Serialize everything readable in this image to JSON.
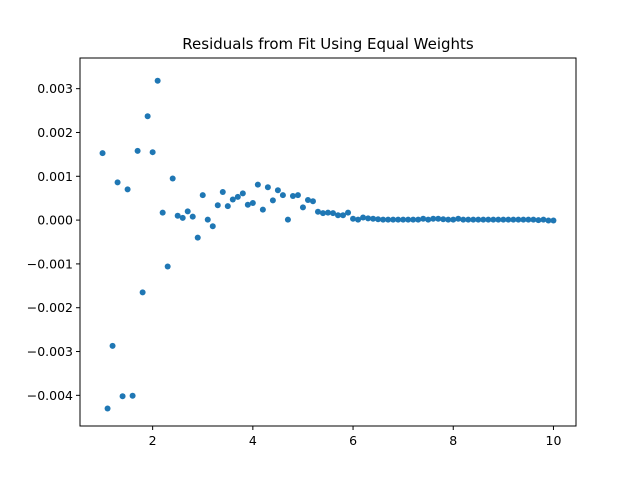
{
  "chart_data": {
    "type": "scatter",
    "title": "Residuals from Fit Using Equal Weights",
    "xlabel": "",
    "ylabel": "",
    "xlim": [
      0.55,
      10.45
    ],
    "ylim": [
      -0.0047,
      0.0037
    ],
    "x_ticks": [
      2,
      4,
      6,
      8,
      10
    ],
    "x_tick_labels": [
      "2",
      "4",
      "6",
      "8",
      "10"
    ],
    "y_ticks": [
      -0.004,
      -0.003,
      -0.002,
      -0.001,
      0.0,
      0.001,
      0.002,
      0.003
    ],
    "y_tick_labels": [
      "−0.004",
      "−0.003",
      "−0.002",
      "−0.001",
      "0.000",
      "0.001",
      "0.002",
      "0.003"
    ],
    "grid": false,
    "colors": {
      "marker": "#1f77b4",
      "axes": "#000000",
      "background": "#ffffff"
    },
    "series": [
      {
        "x": [
          1.0,
          1.1,
          1.2,
          1.3,
          1.4,
          1.5,
          1.6,
          1.7,
          1.8,
          1.9,
          2.0,
          2.1,
          2.2,
          2.3,
          2.4,
          2.5,
          2.6,
          2.7,
          2.8,
          2.9,
          3.0,
          3.1,
          3.2,
          3.3,
          3.4,
          3.5,
          3.6,
          3.7,
          3.8,
          3.9,
          4.0,
          4.1,
          4.2,
          4.3,
          4.4,
          4.5,
          4.6,
          4.7,
          4.8,
          4.9,
          5.0,
          5.1,
          5.2,
          5.3,
          5.4,
          5.5,
          5.6,
          5.7,
          5.8,
          5.9,
          6.0,
          6.1,
          6.2,
          6.3,
          6.4,
          6.5,
          6.6,
          6.7,
          6.8,
          6.9,
          7.0,
          7.1,
          7.2,
          7.3,
          7.4,
          7.5,
          7.6,
          7.7,
          7.8,
          7.9,
          8.0,
          8.1,
          8.2,
          8.3,
          8.4,
          8.5,
          8.6,
          8.7,
          8.8,
          8.9,
          9.0,
          9.1,
          9.2,
          9.3,
          9.4,
          9.5,
          9.6,
          9.7,
          9.8,
          9.9,
          10.0
        ],
        "y": [
          0.00153,
          -0.0043,
          -0.00287,
          0.00086,
          -0.00402,
          0.0007,
          -0.00401,
          0.00158,
          -0.00165,
          0.00237,
          0.00155,
          0.00318,
          0.00017,
          -0.00106,
          0.00095,
          0.0001,
          5e-05,
          0.0002,
          8e-05,
          -0.0004,
          0.00057,
          1e-05,
          -0.00014,
          0.00034,
          0.00064,
          0.00032,
          0.00047,
          0.00053,
          0.00061,
          0.00035,
          0.00039,
          0.00081,
          0.00024,
          0.00075,
          0.00045,
          0.00068,
          0.00057,
          1e-05,
          0.00055,
          0.00057,
          0.00029,
          0.00046,
          0.00043,
          0.00019,
          0.00016,
          0.00017,
          0.00016,
          0.00011,
          0.00011,
          0.00017,
          3e-05,
          1e-05,
          6e-05,
          4e-05,
          3e-05,
          2e-05,
          1e-05,
          1e-05,
          1e-05,
          1e-05,
          1e-05,
          1e-05,
          1e-05,
          1e-05,
          3e-05,
          1e-05,
          3e-05,
          3e-05,
          2e-05,
          1e-05,
          1e-05,
          3e-05,
          1e-05,
          1e-05,
          1e-05,
          1e-05,
          1e-05,
          1e-05,
          1e-05,
          1e-05,
          1e-05,
          1e-05,
          1e-05,
          1e-05,
          1e-05,
          1e-05,
          1e-05,
          0.0,
          1e-05,
          -1e-05,
          -1e-05
        ]
      }
    ]
  }
}
